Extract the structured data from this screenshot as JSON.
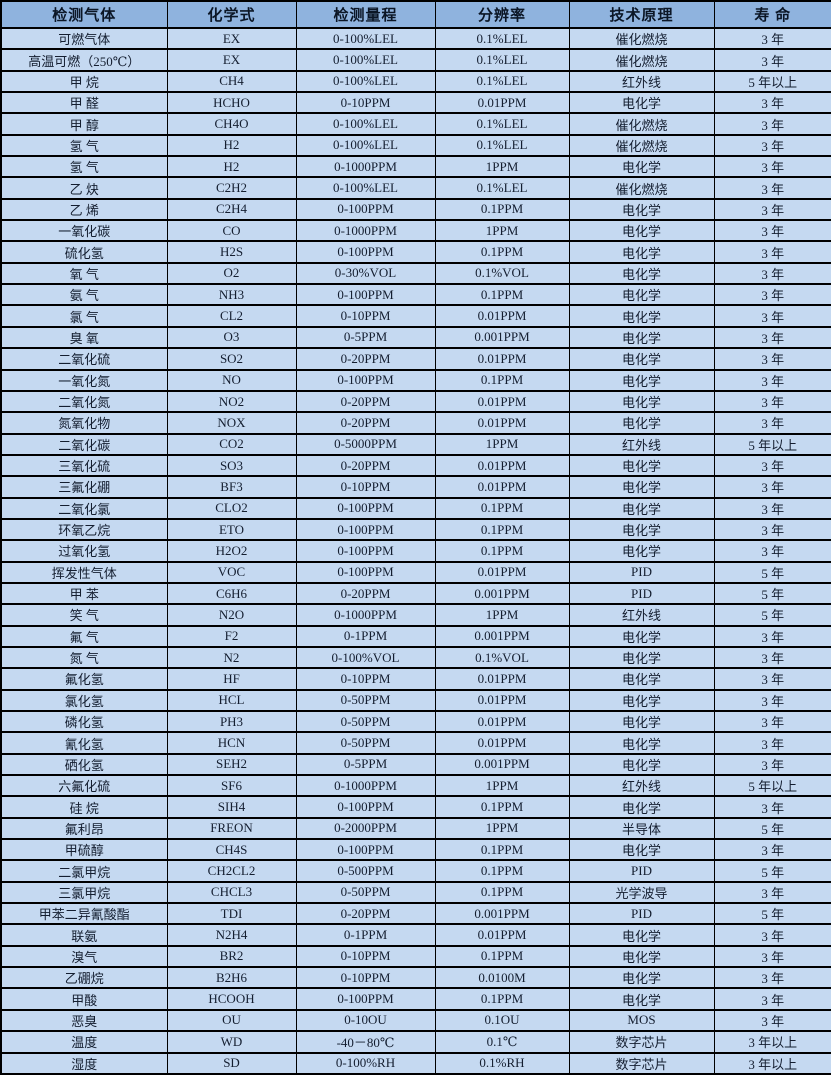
{
  "table": {
    "colors": {
      "header_bg": "#8fb3de",
      "row_bg": "#c5d9f1",
      "border": "#000000",
      "text": "#141e30"
    },
    "headers": [
      "检测气体",
      "化学式",
      "检测量程",
      "分辨率",
      "技术原理",
      "寿 命"
    ],
    "column_keys": [
      "gas",
      "formula",
      "range",
      "resolution",
      "principle",
      "lifespan"
    ],
    "rows": [
      {
        "gas": "可燃气体",
        "formula": "EX",
        "range": "0-100%LEL",
        "resolution": "0.1%LEL",
        "principle": "催化燃烧",
        "lifespan": "3 年"
      },
      {
        "gas": "高温可燃（250℃）",
        "formula": "EX",
        "range": "0-100%LEL",
        "resolution": "0.1%LEL",
        "principle": "催化燃烧",
        "lifespan": "3 年"
      },
      {
        "gas": "甲 烷",
        "formula": "CH4",
        "range": "0-100%LEL",
        "resolution": "0.1%LEL",
        "principle": "红外线",
        "lifespan": "5 年以上"
      },
      {
        "gas": "甲 醛",
        "formula": "HCHO",
        "range": "0-10PPM",
        "resolution": "0.01PPM",
        "principle": "电化学",
        "lifespan": "3 年"
      },
      {
        "gas": "甲 醇",
        "formula": "CH4O",
        "range": "0-100%LEL",
        "resolution": "0.1%LEL",
        "principle": "催化燃烧",
        "lifespan": "3 年"
      },
      {
        "gas": "氢 气",
        "formula": "H2",
        "range": "0-100%LEL",
        "resolution": "0.1%LEL",
        "principle": "催化燃烧",
        "lifespan": "3 年"
      },
      {
        "gas": "氢 气",
        "formula": "H2",
        "range": "0-1000PPM",
        "resolution": "1PPM",
        "principle": "电化学",
        "lifespan": "3 年"
      },
      {
        "gas": "乙 炔",
        "formula": "C2H2",
        "range": "0-100%LEL",
        "resolution": "0.1%LEL",
        "principle": "催化燃烧",
        "lifespan": "3 年"
      },
      {
        "gas": "乙 烯",
        "formula": "C2H4",
        "range": "0-100PPM",
        "resolution": "0.1PPM",
        "principle": "电化学",
        "lifespan": "3 年"
      },
      {
        "gas": "一氧化碳",
        "formula": "CO",
        "range": "0-1000PPM",
        "resolution": "1PPM",
        "principle": "电化学",
        "lifespan": "3 年"
      },
      {
        "gas": "硫化氢",
        "formula": "H2S",
        "range": "0-100PPM",
        "resolution": "0.1PPM",
        "principle": "电化学",
        "lifespan": "3 年"
      },
      {
        "gas": "氧 气",
        "formula": "O2",
        "range": "0-30%VOL",
        "resolution": "0.1%VOL",
        "principle": "电化学",
        "lifespan": "3 年"
      },
      {
        "gas": "氨 气",
        "formula": "NH3",
        "range": "0-100PPM",
        "resolution": "0.1PPM",
        "principle": "电化学",
        "lifespan": "3 年"
      },
      {
        "gas": "氯 气",
        "formula": "CL2",
        "range": "0-10PPM",
        "resolution": "0.01PPM",
        "principle": "电化学",
        "lifespan": "3 年"
      },
      {
        "gas": "臭 氧",
        "formula": "O3",
        "range": "0-5PPM",
        "resolution": "0.001PPM",
        "principle": "电化学",
        "lifespan": "3 年"
      },
      {
        "gas": "二氧化硫",
        "formula": "SO2",
        "range": "0-20PPM",
        "resolution": "0.01PPM",
        "principle": "电化学",
        "lifespan": "3 年"
      },
      {
        "gas": "一氧化氮",
        "formula": "NO",
        "range": "0-100PPM",
        "resolution": "0.1PPM",
        "principle": "电化学",
        "lifespan": "3 年"
      },
      {
        "gas": "二氧化氮",
        "formula": "NO2",
        "range": "0-20PPM",
        "resolution": "0.01PPM",
        "principle": "电化学",
        "lifespan": "3 年"
      },
      {
        "gas": "氮氧化物",
        "formula": "NOX",
        "range": "0-20PPM",
        "resolution": "0.01PPM",
        "principle": "电化学",
        "lifespan": "3 年"
      },
      {
        "gas": "二氧化碳",
        "formula": "CO2",
        "range": "0-5000PPM",
        "resolution": "1PPM",
        "principle": "红外线",
        "lifespan": "5 年以上"
      },
      {
        "gas": "三氧化硫",
        "formula": "SO3",
        "range": "0-20PPM",
        "resolution": "0.01PPM",
        "principle": "电化学",
        "lifespan": "3 年"
      },
      {
        "gas": "三氟化硼",
        "formula": "BF3",
        "range": "0-10PPM",
        "resolution": "0.01PPM",
        "principle": "电化学",
        "lifespan": "3 年"
      },
      {
        "gas": "二氧化氯",
        "formula": "CLO2",
        "range": "0-100PPM",
        "resolution": "0.1PPM",
        "principle": "电化学",
        "lifespan": "3 年"
      },
      {
        "gas": "环氧乙烷",
        "formula": "ETO",
        "range": "0-100PPM",
        "resolution": "0.1PPM",
        "principle": "电化学",
        "lifespan": "3 年"
      },
      {
        "gas": "过氧化氢",
        "formula": "H2O2",
        "range": "0-100PPM",
        "resolution": "0.1PPM",
        "principle": "电化学",
        "lifespan": "3 年"
      },
      {
        "gas": "挥发性气体",
        "formula": "VOC",
        "range": "0-100PPM",
        "resolution": "0.01PPM",
        "principle": "PID",
        "lifespan": "5 年"
      },
      {
        "gas": "甲 苯",
        "formula": "C6H6",
        "range": "0-20PPM",
        "resolution": "0.001PPM",
        "principle": "PID",
        "lifespan": "5 年"
      },
      {
        "gas": "笑 气",
        "formula": "N2O",
        "range": "0-1000PPM",
        "resolution": "1PPM",
        "principle": "红外线",
        "lifespan": "5 年"
      },
      {
        "gas": "氟 气",
        "formula": "F2",
        "range": "0-1PPM",
        "resolution": "0.001PPM",
        "principle": "电化学",
        "lifespan": "3 年"
      },
      {
        "gas": "氮 气",
        "formula": "N2",
        "range": "0-100%VOL",
        "resolution": "0.1%VOL",
        "principle": "电化学",
        "lifespan": "3 年"
      },
      {
        "gas": "氟化氢",
        "formula": "HF",
        "range": "0-10PPM",
        "resolution": "0.01PPM",
        "principle": "电化学",
        "lifespan": "3 年"
      },
      {
        "gas": "氯化氢",
        "formula": "HCL",
        "range": "0-50PPM",
        "resolution": "0.01PPM",
        "principle": "电化学",
        "lifespan": "3 年"
      },
      {
        "gas": "磷化氢",
        "formula": "PH3",
        "range": "0-50PPM",
        "resolution": "0.01PPM",
        "principle": "电化学",
        "lifespan": "3 年"
      },
      {
        "gas": "氰化氢",
        "formula": "HCN",
        "range": "0-50PPM",
        "resolution": "0.01PPM",
        "principle": "电化学",
        "lifespan": "3 年"
      },
      {
        "gas": "硒化氢",
        "formula": "SEH2",
        "range": "0-5PPM",
        "resolution": "0.001PPM",
        "principle": "电化学",
        "lifespan": "3 年"
      },
      {
        "gas": "六氟化硫",
        "formula": "SF6",
        "range": "0-1000PPM",
        "resolution": "1PPM",
        "principle": "红外线",
        "lifespan": "5 年以上"
      },
      {
        "gas": "硅 烷",
        "formula": "SIH4",
        "range": "0-100PPM",
        "resolution": "0.1PPM",
        "principle": "电化学",
        "lifespan": "3 年"
      },
      {
        "gas": "氟利昂",
        "formula": "FREON",
        "range": "0-2000PPM",
        "resolution": "1PPM",
        "principle": "半导体",
        "lifespan": "5 年"
      },
      {
        "gas": "甲硫醇",
        "formula": "CH4S",
        "range": "0-100PPM",
        "resolution": "0.1PPM",
        "principle": "电化学",
        "lifespan": "3 年"
      },
      {
        "gas": "二氯甲烷",
        "formula": "CH2CL2",
        "range": "0-500PPM",
        "resolution": "0.1PPM",
        "principle": "PID",
        "lifespan": "5 年"
      },
      {
        "gas": "三氯甲烷",
        "formula": "CHCL3",
        "range": "0-50PPM",
        "resolution": "0.1PPM",
        "principle": "光学波导",
        "lifespan": "3 年"
      },
      {
        "gas": "甲苯二异氰酸酯",
        "formula": "TDI",
        "range": "0-20PPM",
        "resolution": "0.001PPM",
        "principle": "PID",
        "lifespan": "5 年"
      },
      {
        "gas": "联氨",
        "formula": "N2H4",
        "range": "0-1PPM",
        "resolution": "0.01PPM",
        "principle": "电化学",
        "lifespan": "3 年"
      },
      {
        "gas": "溴气",
        "formula": "BR2",
        "range": "0-10PPM",
        "resolution": "0.1PPM",
        "principle": "电化学",
        "lifespan": "3 年"
      },
      {
        "gas": "乙硼烷",
        "formula": "B2H6",
        "range": "0-10PPM",
        "resolution": "0.0100M",
        "principle": "电化学",
        "lifespan": "3 年"
      },
      {
        "gas": "甲酸",
        "formula": "HCOOH",
        "range": "0-100PPM",
        "resolution": "0.1PPM",
        "principle": "电化学",
        "lifespan": "3 年"
      },
      {
        "gas": "恶臭",
        "formula": "OU",
        "range": "0-10OU",
        "resolution": "0.1OU",
        "principle": "MOS",
        "lifespan": "3 年"
      },
      {
        "gas": "温度",
        "formula": "WD",
        "range": "-40－80℃",
        "resolution": "0.1℃",
        "principle": "数字芯片",
        "lifespan": "3 年以上"
      },
      {
        "gas": "湿度",
        "formula": "SD",
        "range": "0-100%RH",
        "resolution": "0.1%RH",
        "principle": "数字芯片",
        "lifespan": "3 年以上"
      }
    ]
  }
}
